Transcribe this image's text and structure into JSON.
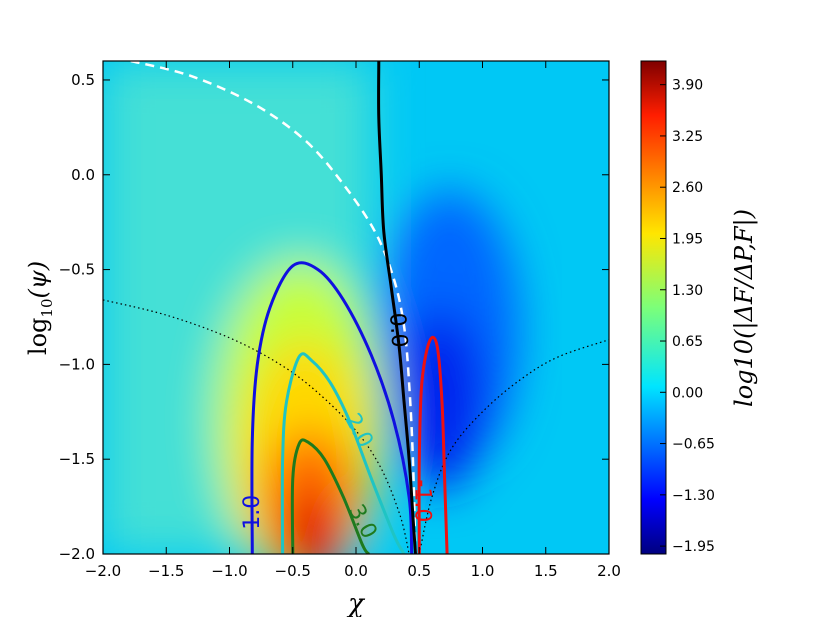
{
  "chart_data": {
    "type": "heatmap",
    "title": "",
    "xlabel": "χ",
    "ylabel_base": "log",
    "ylabel_sub": "10",
    "ylabel_arg": "(ψ)",
    "xlim": [
      -2.0,
      2.0
    ],
    "ylim": [
      -2.0,
      0.6
    ],
    "x_ticks": [
      -2.0,
      -1.5,
      -1.0,
      -0.5,
      0.0,
      0.5,
      1.0,
      1.5,
      2.0
    ],
    "x_tick_labels": [
      "−2.0",
      "−1.5",
      "−1.0",
      "−0.5",
      "0.0",
      "0.5",
      "1.0",
      "1.5",
      "2.0"
    ],
    "y_ticks": [
      -2.0,
      -1.5,
      -1.0,
      -0.5,
      0.0,
      0.5
    ],
    "y_tick_labels": [
      "−2.0",
      "−1.5",
      "−1.0",
      "−0.5",
      "0.0",
      "0.5"
    ],
    "colorbar": {
      "label": "log10(|ΔF/ΔP,F|)",
      "colormap": "jet",
      "range": [
        -2.05,
        4.2
      ],
      "ticks": [
        -1.95,
        -1.3,
        -0.65,
        0.0,
        0.65,
        1.3,
        1.95,
        2.6,
        3.25,
        3.9
      ],
      "tick_labels": [
        "−1.95",
        "−1.30",
        "−0.65",
        "0.00",
        "0.65",
        "1.30",
        "1.95",
        "2.60",
        "3.25",
        "3.90"
      ]
    },
    "contours": [
      {
        "level": "1.0",
        "color": "#1010e0",
        "points": [
          [
            -0.82,
            -2.0
          ],
          [
            -0.82,
            -1.4
          ],
          [
            -0.78,
            -1.0
          ],
          [
            -0.68,
            -0.7
          ],
          [
            -0.5,
            -0.48
          ],
          [
            -0.3,
            -0.5
          ],
          [
            -0.1,
            -0.66
          ],
          [
            0.12,
            -0.95
          ],
          [
            0.3,
            -1.3
          ],
          [
            0.42,
            -1.7
          ],
          [
            0.44,
            -2.0
          ]
        ]
      },
      {
        "level": "2.0",
        "color": "#1fc4c4",
        "points": [
          [
            -0.58,
            -2.0
          ],
          [
            -0.58,
            -1.5
          ],
          [
            -0.55,
            -1.2
          ],
          [
            -0.45,
            -0.96
          ],
          [
            -0.35,
            -0.98
          ],
          [
            -0.2,
            -1.1
          ],
          [
            -0.05,
            -1.3
          ],
          [
            0.12,
            -1.6
          ],
          [
            0.3,
            -1.9
          ],
          [
            0.38,
            -2.0
          ]
        ]
      },
      {
        "level": "3.0",
        "color": "#1e7a1e",
        "points": [
          [
            -0.5,
            -2.0
          ],
          [
            -0.5,
            -1.6
          ],
          [
            -0.45,
            -1.42
          ],
          [
            -0.38,
            -1.41
          ],
          [
            -0.25,
            -1.5
          ],
          [
            -0.1,
            -1.7
          ],
          [
            0.05,
            -1.95
          ],
          [
            0.1,
            -2.0
          ]
        ]
      },
      {
        "level": "0.0",
        "color": "#000000",
        "points": [
          [
            0.18,
            0.6
          ],
          [
            0.18,
            0.3
          ],
          [
            0.2,
            0.0
          ],
          [
            0.22,
            -0.3
          ],
          [
            0.28,
            -0.6
          ],
          [
            0.34,
            -0.9
          ],
          [
            0.38,
            -1.2
          ],
          [
            0.42,
            -1.5
          ],
          [
            0.45,
            -1.8
          ],
          [
            0.47,
            -2.0
          ]
        ]
      },
      {
        "level": "-1.0",
        "color": "#ee1010",
        "points": [
          [
            0.5,
            -2.0
          ],
          [
            0.5,
            -1.5
          ],
          [
            0.52,
            -1.1
          ],
          [
            0.58,
            -0.88
          ],
          [
            0.64,
            -0.9
          ],
          [
            0.68,
            -1.2
          ],
          [
            0.7,
            -1.6
          ],
          [
            0.72,
            -2.0
          ]
        ]
      }
    ],
    "dashed_curve": {
      "color": "#ffffff",
      "points": [
        [
          -1.78,
          0.6
        ],
        [
          -1.3,
          0.52
        ],
        [
          -0.8,
          0.37
        ],
        [
          -0.4,
          0.18
        ],
        [
          -0.1,
          -0.05
        ],
        [
          0.15,
          -0.3
        ],
        [
          0.3,
          -0.55
        ],
        [
          0.38,
          -0.8
        ],
        [
          0.42,
          -1.1
        ],
        [
          0.45,
          -1.5
        ],
        [
          0.47,
          -2.0
        ]
      ]
    },
    "dotted_curves": [
      {
        "color": "#000000",
        "points": [
          [
            -2.0,
            -0.66
          ],
          [
            -1.5,
            -0.74
          ],
          [
            -1.0,
            -0.86
          ],
          [
            -0.6,
            -1.0
          ],
          [
            -0.3,
            -1.15
          ],
          [
            0.0,
            -1.35
          ],
          [
            0.2,
            -1.55
          ],
          [
            0.35,
            -1.8
          ],
          [
            0.42,
            -2.0
          ]
        ]
      },
      {
        "color": "#000000",
        "points": [
          [
            0.5,
            -2.0
          ],
          [
            0.6,
            -1.7
          ],
          [
            0.75,
            -1.45
          ],
          [
            1.0,
            -1.25
          ],
          [
            1.3,
            -1.08
          ],
          [
            1.6,
            -0.96
          ],
          [
            2.0,
            -0.87
          ]
        ]
      }
    ]
  }
}
